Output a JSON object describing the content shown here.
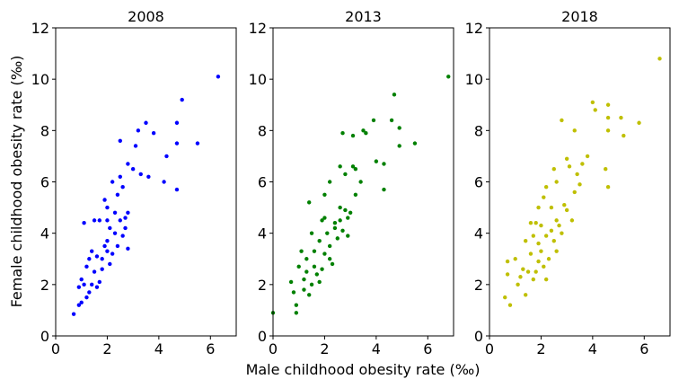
{
  "chart_data": [
    {
      "type": "scatter",
      "title": "2008",
      "ylabel": "Female childhood obesity rate (‰)",
      "color": "#0000ff",
      "xlim": [
        0,
        7
      ],
      "ylim": [
        0,
        12
      ],
      "xticks": [
        0,
        2,
        4,
        6
      ],
      "yticks": [
        0,
        2,
        4,
        6,
        8,
        10,
        12
      ],
      "x": [
        6.3,
        4.9,
        3.5,
        4.7,
        5.5,
        4.7,
        2.5,
        3.1,
        3.8,
        3.2,
        4.3,
        4.2,
        4.7,
        3.0,
        2.8,
        3.3,
        3.6,
        2.5,
        2.2,
        1.9,
        2.0,
        1.5,
        1.1,
        0.7,
        0.9,
        1.0,
        0.9,
        1.1,
        1.3,
        1.2,
        1.4,
        1.5,
        1.3,
        1.6,
        1.8,
        1.9,
        2.0,
        2.1,
        2.3,
        2.5,
        2.7,
        2.8,
        2.4,
        2.6,
        2.2,
        1.7,
        1.8,
        2.0,
        2.4,
        2.6,
        2.8,
        1.2,
        1.0,
        1.6,
        2.1,
        2.3,
        2.7,
        1.4,
        2.0,
        1.7
      ],
      "y": [
        10.1,
        9.2,
        8.3,
        8.3,
        7.5,
        7.5,
        7.6,
        7.4,
        7.9,
        8.0,
        7.0,
        6.0,
        5.7,
        6.5,
        6.7,
        6.3,
        6.2,
        6.2,
        6.0,
        5.3,
        5.0,
        4.5,
        4.4,
        0.85,
        1.2,
        1.3,
        1.9,
        2.0,
        1.7,
        1.5,
        2.0,
        2.5,
        3.0,
        3.1,
        2.6,
        3.5,
        3.7,
        4.2,
        4.0,
        4.5,
        4.6,
        4.8,
        3.5,
        3.9,
        3.2,
        2.1,
        3.0,
        4.5,
        5.5,
        5.8,
        3.4,
        2.7,
        2.2,
        1.9,
        2.8,
        4.8,
        4.2,
        3.3,
        3.3,
        4.5
      ]
    },
    {
      "type": "scatter",
      "title": "2013",
      "xlabel": "Male childhood obesity rate (‰)",
      "color": "#008000",
      "xlim": [
        0,
        7
      ],
      "ylim": [
        0,
        12
      ],
      "xticks": [
        0,
        2,
        4,
        6
      ],
      "yticks": [
        0,
        2,
        4,
        6,
        8,
        10,
        12
      ],
      "x": [
        6.8,
        4.7,
        3.9,
        4.6,
        4.9,
        3.6,
        2.7,
        3.1,
        4.9,
        5.5,
        3.5,
        4.3,
        4.3,
        4.0,
        3.1,
        3.2,
        2.6,
        2.2,
        2.8,
        3.4,
        2.0,
        1.9,
        1.4,
        0.0,
        0.9,
        0.9,
        0.8,
        0.7,
        1.2,
        1.4,
        1.5,
        1.7,
        1.0,
        1.3,
        1.1,
        1.6,
        1.8,
        2.0,
        2.2,
        2.4,
        2.6,
        2.8,
        2.9,
        2.5,
        2.7,
        2.3,
        1.9,
        2.1,
        1.5,
        2.0,
        2.6,
        3.0,
        1.2,
        1.8,
        2.2,
        2.4,
        1.6,
        3.2,
        2.9,
        1.3
      ],
      "y": [
        10.1,
        9.4,
        8.4,
        8.4,
        8.1,
        7.9,
        7.9,
        7.8,
        7.4,
        7.5,
        8.0,
        6.7,
        5.7,
        6.8,
        6.6,
        6.5,
        6.6,
        6.0,
        6.3,
        6.0,
        5.5,
        4.5,
        5.2,
        0.9,
        0.9,
        1.2,
        1.7,
        2.1,
        1.8,
        1.6,
        2.0,
        2.4,
        2.7,
        3.0,
        3.3,
        3.3,
        3.7,
        3.2,
        3.5,
        4.2,
        4.5,
        4.9,
        4.6,
        3.8,
        4.1,
        2.8,
        2.6,
        4.0,
        4.0,
        4.6,
        5.0,
        4.8,
        2.2,
        2.1,
        3.0,
        4.4,
        2.7,
        5.5,
        3.9,
        2.5
      ]
    },
    {
      "type": "scatter",
      "title": "2018",
      "color": "#bfbf00",
      "xlim": [
        0,
        7
      ],
      "ylim": [
        0,
        12
      ],
      "xticks": [
        0,
        2,
        4,
        6
      ],
      "yticks": [
        0,
        2,
        4,
        6,
        8,
        10,
        12
      ],
      "x": [
        6.6,
        4.0,
        4.6,
        4.1,
        3.3,
        5.1,
        4.6,
        5.8,
        5.2,
        2.8,
        3.8,
        4.6,
        4.5,
        4.6,
        3.6,
        3.0,
        3.1,
        2.5,
        2.2,
        2.6,
        3.4,
        2.1,
        1.9,
        1.6,
        0.6,
        0.8,
        0.7,
        0.7,
        1.0,
        1.2,
        1.4,
        1.3,
        1.5,
        1.7,
        1.6,
        1.8,
        1.9,
        2.0,
        2.2,
        2.4,
        2.6,
        2.9,
        3.0,
        2.7,
        2.5,
        2.3,
        2.1,
        1.9,
        2.0,
        2.8,
        3.2,
        3.3,
        2.4,
        1.1,
        1.7,
        2.2,
        3.5,
        1.4,
        2.6,
        1.8
      ],
      "y": [
        10.8,
        9.1,
        9.0,
        8.8,
        8.0,
        8.5,
        8.5,
        8.3,
        7.8,
        8.4,
        7.0,
        8.0,
        6.5,
        5.8,
        6.7,
        6.9,
        6.6,
        6.5,
        5.8,
        6.0,
        6.3,
        5.4,
        5.0,
        4.4,
        1.5,
        1.2,
        2.4,
        2.9,
        3.0,
        2.3,
        1.6,
        2.6,
        2.5,
        2.2,
        3.2,
        2.5,
        3.6,
        3.3,
        3.9,
        4.1,
        4.5,
        5.1,
        4.9,
        4.3,
        3.7,
        3.0,
        2.7,
        2.9,
        4.3,
        4.0,
        4.5,
        5.6,
        5.0,
        2.0,
        3.9,
        2.2,
        5.9,
        3.7,
        3.3,
        4.4
      ]
    }
  ]
}
